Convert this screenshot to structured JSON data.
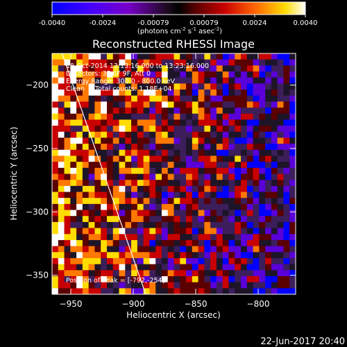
{
  "chart_data": {
    "type": "heatmap",
    "title": "Reconstructed RHESSI Image",
    "xlabel": "Heliocentric X (arcsec)",
    "ylabel": "Heliocentric Y (arcsec)",
    "xlim": [
      -965,
      -770
    ],
    "ylim": [
      -365,
      -175
    ],
    "xticks": [
      -950,
      -900,
      -850,
      -800
    ],
    "yticks": [
      -200,
      -250,
      -300,
      -350
    ],
    "grid": false,
    "colorbar": {
      "range": [
        -0.004,
        0.004
      ],
      "ticks": [
        "-0.0040",
        "-0.0024",
        "-0.00079",
        "0.00079",
        "0.0024",
        "0.0040"
      ],
      "units_label": "(photons cm",
      "units_exp1": "-2",
      "units_mid": " s",
      "units_exp2": "-1",
      "units_mid2": " asec",
      "units_exp3": "-2",
      "units_end": ")"
    },
    "annotations": {
      "time": "18-Oct-2014 13:13:16.000 to 13:23:16.000",
      "detectors": "Detectors: 3F 6F 9F, Att 0",
      "energy": "Energy Range: 300.0 - 800.0 keV",
      "method": "Clean     Total counts: 1.18E+04",
      "peak": "Position of Peak = [-792,-254]"
    },
    "limb_line": [
      [
        -957,
        -175
      ],
      [
        -890,
        -365
      ]
    ],
    "grid_cells": 40,
    "colors": {
      "background": "#000000",
      "axes": "#ffffff",
      "colormap": [
        "#0000ff",
        "#5a00d8",
        "#3c1e5a",
        "#1e1428",
        "#5a0000",
        "#c80000",
        "#ff7800",
        "#ffdc00",
        "#ffffff"
      ]
    }
  },
  "footer": {
    "date": "22-Jun-2017 20:40"
  }
}
